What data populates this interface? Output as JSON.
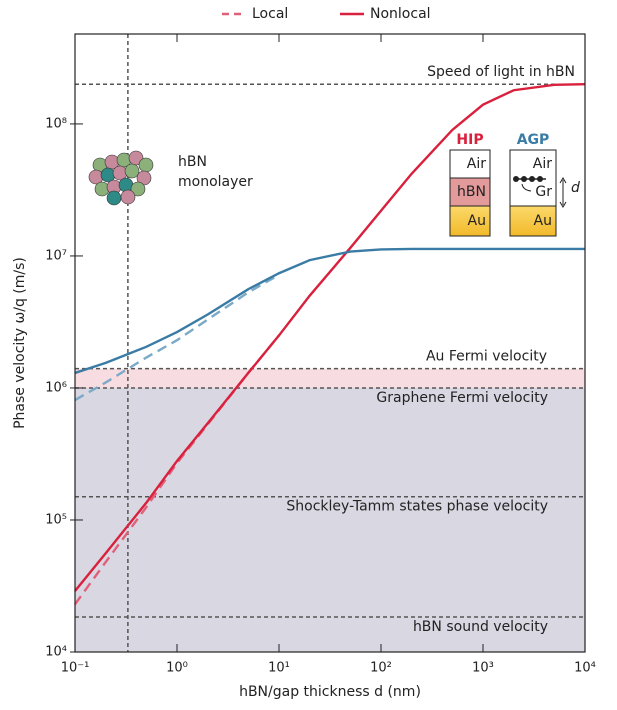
{
  "chart_data": {
    "type": "line",
    "xlabel": "hBN/gap thickness d (nm)",
    "ylabel": "Phase velocity ω/q (m/s)",
    "xscale": "log",
    "yscale": "log",
    "xlim": [
      0.1,
      10000
    ],
    "ylim": [
      10000,
      480000000
    ],
    "xticks": [
      {
        "value": 0.1,
        "label": "10⁻¹"
      },
      {
        "value": 1,
        "label": "10⁰"
      },
      {
        "value": 10,
        "label": "10¹"
      },
      {
        "value": 100,
        "label": "10²"
      },
      {
        "value": 1000,
        "label": "10³"
      },
      {
        "value": 10000,
        "label": "10⁴"
      }
    ],
    "yticks": [
      {
        "value": 10000,
        "label": "10⁴"
      },
      {
        "value": 100000,
        "label": "10⁵"
      },
      {
        "value": 1000000,
        "label": "10⁶"
      },
      {
        "value": 10000000,
        "label": "10⁷"
      },
      {
        "value": 100000000,
        "label": "10⁸"
      }
    ],
    "x": [
      0.1,
      0.2,
      0.5,
      1,
      2,
      5,
      10,
      20,
      50,
      100,
      200,
      500,
      1000,
      2000,
      5000,
      10000
    ],
    "series": [
      {
        "name": "Local",
        "color": "#e0607a",
        "dashed": true,
        "values": [
          23000,
          48000,
          125000,
          270000,
          530000,
          1300000,
          2500000,
          null,
          null,
          null,
          null,
          null,
          null,
          null,
          null,
          null
        ]
      },
      {
        "name": "Nonlocal",
        "color": "#d9203c",
        "dashed": false,
        "values": [
          29000,
          56000,
          135000,
          280000,
          540000,
          1300000,
          2500000,
          5000000,
          11500000,
          22000000,
          42000000,
          90000000,
          140000000,
          180000000,
          198000000,
          200000000
        ]
      },
      {
        "name": "Local",
        "color": "#7aaac8",
        "dashed": true,
        "values": [
          810000,
          1100000,
          1700000,
          2300000,
          3300000,
          5300000,
          7200000,
          null,
          null,
          null,
          null,
          null,
          null,
          null,
          null,
          null
        ]
      },
      {
        "name": "Nonlocal",
        "color": "#3a7ca5",
        "dashed": false,
        "values": [
          1300000,
          1550000,
          2050000,
          2650000,
          3600000,
          5600000,
          7400000,
          9300000,
          10800000,
          11200000,
          11300000,
          11300000,
          11300000,
          11300000,
          11300000,
          11300000
        ]
      }
    ],
    "bands": [
      {
        "from": 10000,
        "to": 1000000,
        "color": "#d9d7e2"
      },
      {
        "from": 1000000,
        "to": 1400000,
        "color": "#f7dde1"
      }
    ],
    "hlines": [
      {
        "label": "Speed of light in hBN",
        "value": 200000000
      },
      {
        "label": "Au Fermi velocity",
        "value": 1400000
      },
      {
        "label": "Graphene Fermi velocity",
        "value": 1000000
      },
      {
        "label": "Shockley-Tamm states phase velocity",
        "value": 150000
      },
      {
        "label": "hBN sound velocity",
        "value": 18400
      }
    ],
    "vlines": [
      {
        "value": 0.33
      }
    ],
    "annotations": {
      "monolayer": [
        "hBN",
        "monolayer"
      ],
      "hip": {
        "title": "HIP",
        "layers": [
          "Air",
          "hBN",
          "Au"
        ]
      },
      "agp": {
        "title": "AGP",
        "layers": [
          "Air",
          "Gr",
          "Au"
        ],
        "gap": "d"
      }
    }
  }
}
